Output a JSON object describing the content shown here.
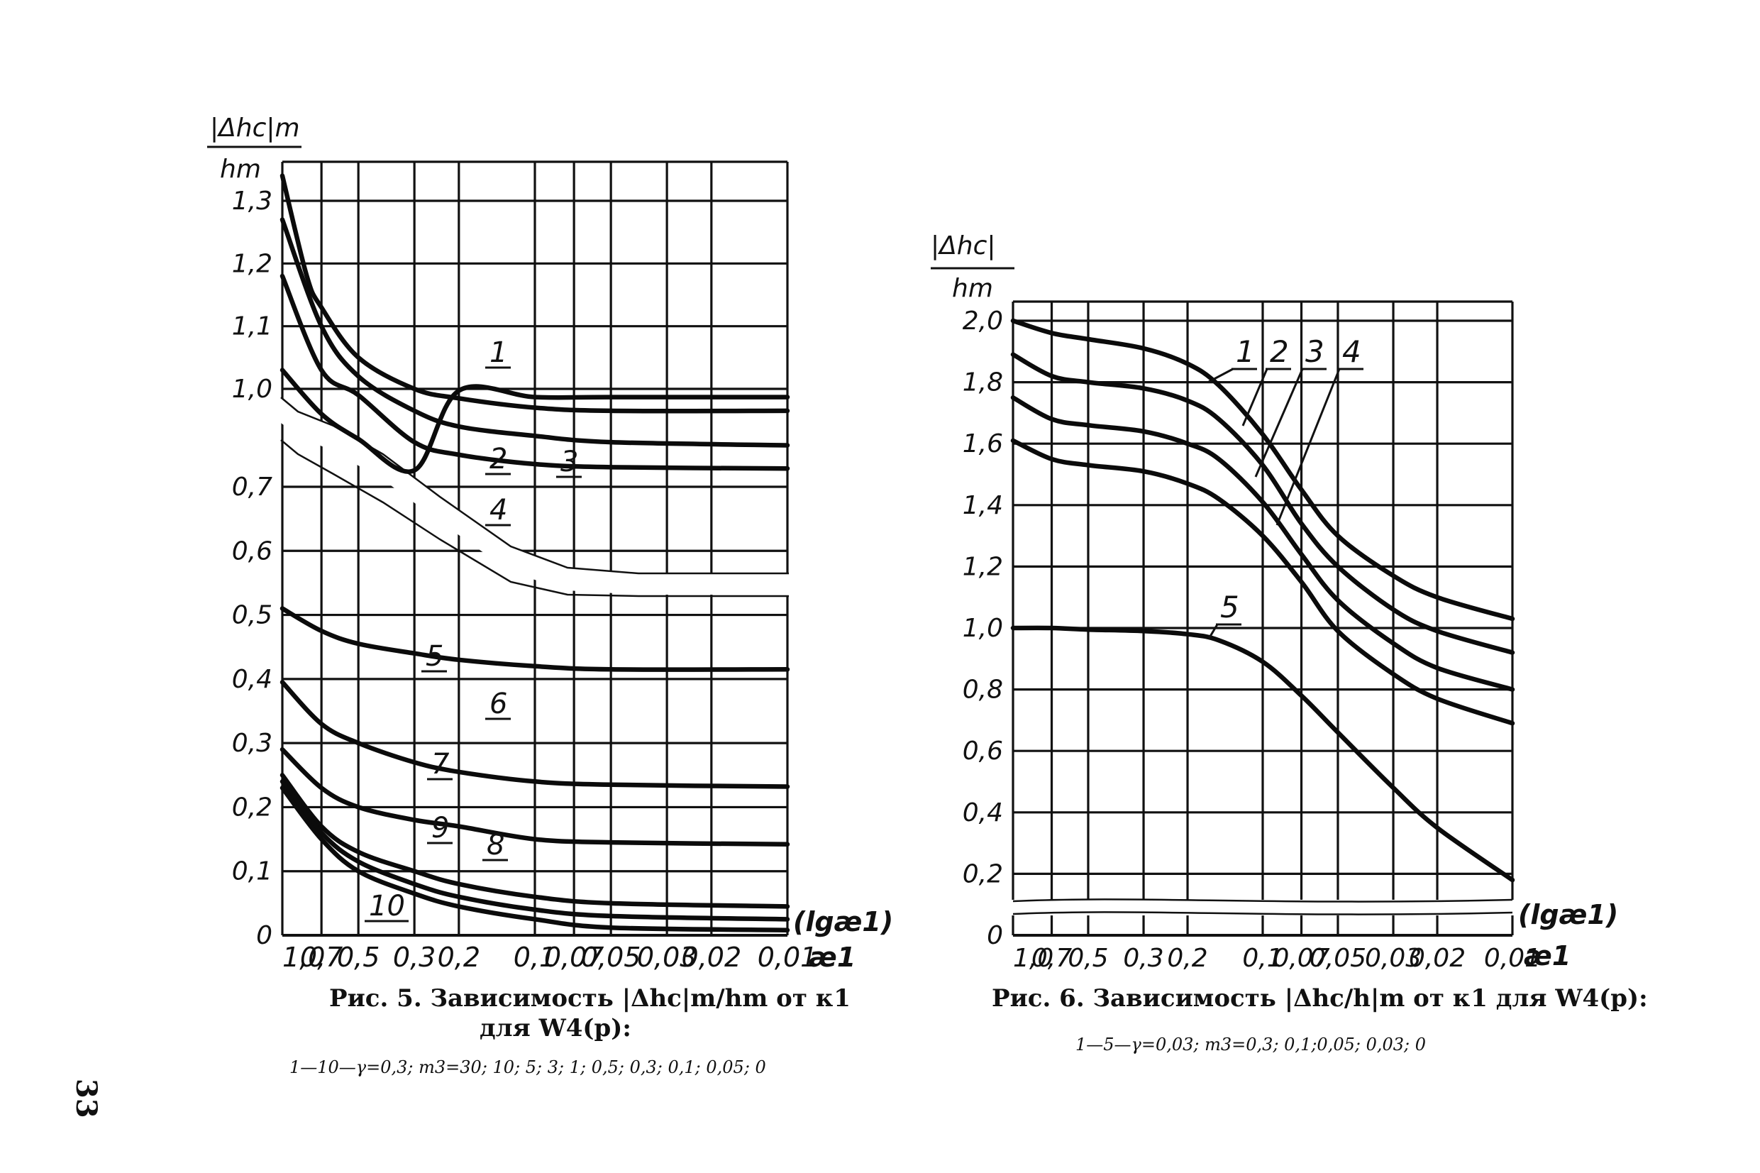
{
  "page_number": "33",
  "figures": [
    {
      "caption_line1": "Рис. 5. Зависимость |Δhc|m/hm от κ1",
      "caption_line2": "для W4(p):",
      "legend_note": "1—10—γ=0,3; m3=30; 10; 5; 3; 1; 0,5; 0,3; 0,1; 0,05; 0",
      "ylabel_top": "|Δhc|m",
      "ylabel_bottom": "hm",
      "x_axis_note": "(lgæ1)",
      "x_axis_symbol": "æ1"
    },
    {
      "caption_line1": "Рис. 6. Зависимость |Δhc/h|m от κ1 для W4(p):",
      "legend_note": "1—5—γ=0,03; m3=0,3; 0,1;0,05; 0,03; 0",
      "ylabel_top": "|Δhc|",
      "ylabel_bottom": "hm",
      "x_axis_note": "(lgæ1)",
      "x_axis_symbol": "æ1"
    }
  ],
  "chart_data": [
    {
      "type": "line",
      "x_scale": "log",
      "x_direction": "decreasing",
      "x_ticks": [
        "1,0",
        "0,7",
        "0,5",
        "0,3",
        "0,2",
        "0,1",
        "0,07",
        "0,05",
        "0,03",
        "0,02",
        "0,01"
      ],
      "y_ticks_upper": [
        "1,3",
        "1,2",
        "1,1",
        "1,0"
      ],
      "y_ticks_lower": [
        "0,7",
        "0,6",
        "0,5",
        "0,4",
        "0,3",
        "0,2",
        "0,1",
        "0"
      ],
      "y_axis_break": "between 1,0 and 0,7",
      "grid": true,
      "series": [
        {
          "name": "1",
          "x": [
            1.0,
            0.8,
            0.7,
            0.5,
            0.3,
            0.2,
            0.1,
            0.05,
            0.01
          ],
          "y": [
            1.34,
            1.18,
            1.13,
            1.05,
            1.0,
            0.985,
            0.97,
            0.965,
            0.965
          ]
        },
        {
          "name": "2",
          "x": [
            1.0,
            0.7,
            0.5,
            0.3,
            0.2,
            0.1,
            0.05,
            0.01
          ],
          "y": [
            1.27,
            1.1,
            1.02,
            0.965,
            0.94,
            0.925,
            0.915,
            0.91
          ]
        },
        {
          "name": "3",
          "x": [
            1.0,
            0.7,
            0.5,
            0.3,
            0.2,
            0.1,
            0.05,
            0.01
          ],
          "y": [
            1.18,
            1.03,
            0.99,
            0.915,
            0.895,
            0.88,
            0.875,
            0.873
          ]
        },
        {
          "name": "4",
          "x": [
            1.0,
            0.7,
            0.5,
            0.3,
            0.2,
            0.1,
            0.05,
            0.01
          ],
          "y": [
            1.03,
            0.96,
            0.92,
            0.87,
            0.85,
            0.84,
            0.84,
            0.84
          ]
        },
        {
          "name": "5",
          "x": [
            1.0,
            0.7,
            0.5,
            0.3,
            0.2,
            0.1,
            0.05,
            0.01
          ],
          "y": [
            0.51,
            0.475,
            0.455,
            0.44,
            0.43,
            0.42,
            0.415,
            0.415
          ]
        },
        {
          "name": "6",
          "x": [
            1.0,
            0.7,
            0.5,
            0.3,
            0.2,
            0.1,
            0.05,
            0.01
          ],
          "y": [
            0.395,
            0.33,
            0.3,
            0.27,
            0.255,
            0.24,
            0.235,
            0.232
          ]
        },
        {
          "name": "7",
          "x": [
            1.0,
            0.7,
            0.5,
            0.3,
            0.2,
            0.1,
            0.05,
            0.01
          ],
          "y": [
            0.29,
            0.23,
            0.2,
            0.18,
            0.17,
            0.15,
            0.145,
            0.142
          ]
        },
        {
          "name": "8",
          "x": [
            1.0,
            0.7,
            0.5,
            0.3,
            0.2,
            0.1,
            0.05,
            0.01
          ],
          "y": [
            0.25,
            0.17,
            0.13,
            0.1,
            0.08,
            0.06,
            0.05,
            0.045
          ]
        },
        {
          "name": "9",
          "x": [
            1.0,
            0.7,
            0.5,
            0.3,
            0.2,
            0.1,
            0.05,
            0.01
          ],
          "y": [
            0.24,
            0.16,
            0.115,
            0.08,
            0.06,
            0.04,
            0.03,
            0.025
          ]
        },
        {
          "name": "10",
          "x": [
            1.0,
            0.7,
            0.5,
            0.3,
            0.2,
            0.1,
            0.05,
            0.01
          ],
          "y": [
            0.23,
            0.15,
            0.1,
            0.065,
            0.045,
            0.025,
            0.012,
            0.008
          ]
        }
      ]
    },
    {
      "type": "line",
      "x_scale": "log",
      "x_direction": "decreasing",
      "x_ticks": [
        "1,0",
        "0,7",
        "0,5",
        "0,3",
        "0,2",
        "0,1",
        "0,07",
        "0,05",
        "0,03",
        "0,02",
        "0,01"
      ],
      "y_ticks": [
        "2,0",
        "1,8",
        "1,6",
        "1,4",
        "1,2",
        "1,0",
        "0,8",
        "0,6",
        "0,4",
        "0,2",
        "0"
      ],
      "ylim": [
        0,
        2.0
      ],
      "grid": true,
      "series": [
        {
          "name": "1",
          "x": [
            1.0,
            0.7,
            0.5,
            0.3,
            0.2,
            0.15,
            0.1,
            0.07,
            0.05,
            0.03,
            0.02,
            0.01
          ],
          "y": [
            2.0,
            1.96,
            1.94,
            1.91,
            1.86,
            1.79,
            1.63,
            1.45,
            1.3,
            1.17,
            1.1,
            1.03
          ]
        },
        {
          "name": "2",
          "x": [
            1.0,
            0.7,
            0.5,
            0.3,
            0.2,
            0.15,
            0.1,
            0.07,
            0.05,
            0.03,
            0.02,
            0.01
          ],
          "y": [
            1.89,
            1.82,
            1.8,
            1.78,
            1.74,
            1.68,
            1.53,
            1.34,
            1.2,
            1.06,
            0.99,
            0.92
          ]
        },
        {
          "name": "3",
          "x": [
            1.0,
            0.7,
            0.5,
            0.3,
            0.2,
            0.15,
            0.1,
            0.07,
            0.05,
            0.03,
            0.02,
            0.01
          ],
          "y": [
            1.75,
            1.68,
            1.66,
            1.64,
            1.6,
            1.55,
            1.41,
            1.24,
            1.09,
            0.95,
            0.87,
            0.8
          ]
        },
        {
          "name": "4",
          "x": [
            1.0,
            0.7,
            0.5,
            0.3,
            0.2,
            0.15,
            0.1,
            0.07,
            0.05,
            0.03,
            0.02,
            0.01
          ],
          "y": [
            1.61,
            1.55,
            1.53,
            1.51,
            1.47,
            1.42,
            1.3,
            1.15,
            0.99,
            0.85,
            0.77,
            0.69
          ]
        },
        {
          "name": "5",
          "x": [
            1.0,
            0.7,
            0.5,
            0.3,
            0.2,
            0.15,
            0.1,
            0.07,
            0.05,
            0.03,
            0.02,
            0.01
          ],
          "y": [
            1.0,
            1.0,
            0.995,
            0.99,
            0.98,
            0.96,
            0.89,
            0.78,
            0.66,
            0.48,
            0.35,
            0.18
          ]
        }
      ]
    }
  ]
}
